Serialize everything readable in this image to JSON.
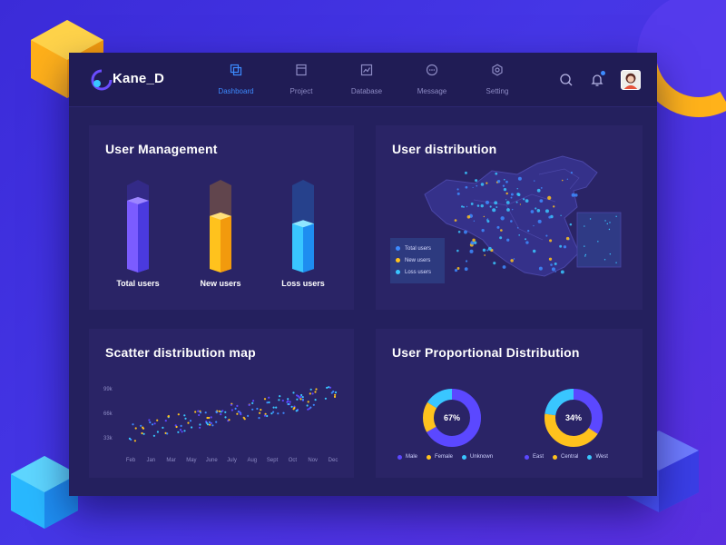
{
  "app": {
    "brand": "Kane_D"
  },
  "nav": [
    {
      "label": "Dashboard",
      "icon": "dashboard-icon",
      "active": true
    },
    {
      "label": "Project",
      "icon": "project-icon",
      "active": false
    },
    {
      "label": "Database",
      "icon": "database-icon",
      "active": false
    },
    {
      "label": "Message",
      "icon": "message-icon",
      "active": false
    },
    {
      "label": "Setting",
      "icon": "setting-icon",
      "active": false
    }
  ],
  "tools": {
    "search": "search-icon",
    "notifications": "bell-icon",
    "avatar": "avatar"
  },
  "colors": {
    "accent": "#3d8bff",
    "yellow": "#ffc21d",
    "cyan": "#39c6ff",
    "purple": "#6a4cff",
    "card": "#2a2466"
  },
  "user_management": {
    "title": "User Management",
    "bars": [
      {
        "label": "Total users",
        "level": 0.82,
        "color": "purple"
      },
      {
        "label": "New users",
        "level": 0.64,
        "color": "yellow"
      },
      {
        "label": "Loss users",
        "level": 0.55,
        "color": "cyan"
      }
    ]
  },
  "user_distribution": {
    "title": "User distribution",
    "legend": [
      "Total users",
      "New users",
      "Loss users"
    ]
  },
  "scatter": {
    "title": "Scatter distribution map",
    "y_ticks": [
      "99k",
      "66k",
      "33k"
    ],
    "x_ticks": [
      "Feb",
      "Jan",
      "Mar",
      "May",
      "June",
      "July",
      "Aug",
      "Sept",
      "Oct",
      "Nov",
      "Dec"
    ]
  },
  "proportional": {
    "title": "User Proportional Distribution",
    "donuts": [
      {
        "center": "67%",
        "legend": [
          "Male",
          "Female",
          "Unknown"
        ]
      },
      {
        "center": "34%",
        "legend": [
          "East",
          "Central",
          "West"
        ]
      }
    ]
  }
}
